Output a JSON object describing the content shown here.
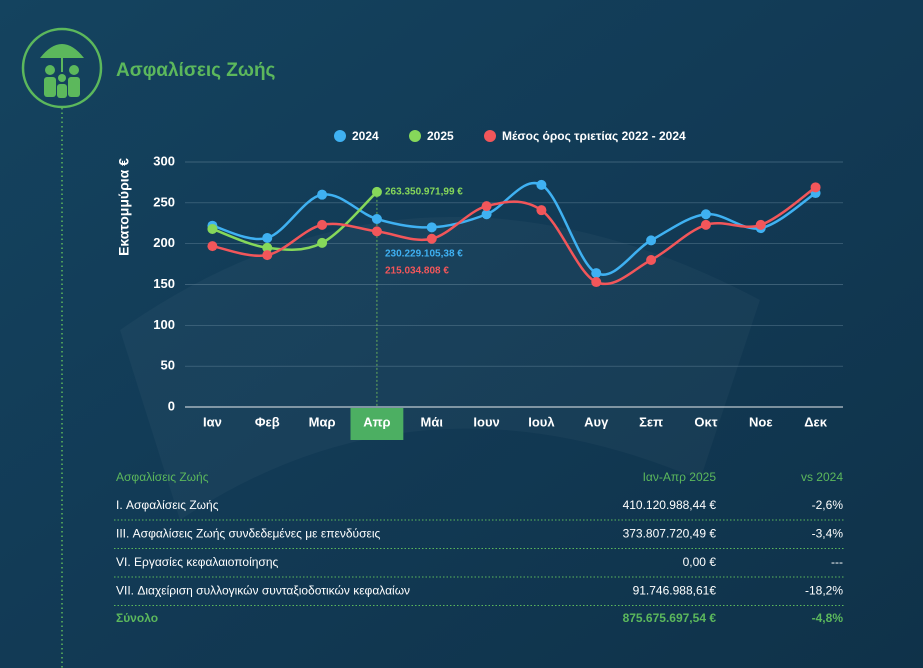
{
  "header": {
    "title": "Ασφαλίσεις Ζωής"
  },
  "chart_data": {
    "type": "line",
    "y_label": "Εκατομμύρια €",
    "categories": [
      "Ιαν",
      "Φεβ",
      "Μαρ",
      "Απρ",
      "Μάι",
      "Ιουν",
      "Ιουλ",
      "Αυγ",
      "Σεπ",
      "Οκτ",
      "Νοε",
      "Δεκ"
    ],
    "highlight_index": 3,
    "series": [
      {
        "name": "2024",
        "color": "#3fb1f2",
        "values": [
          222,
          207,
          260,
          230.229105,
          220,
          236,
          272,
          164,
          204,
          236,
          219,
          262
        ],
        "value_labels": [
          null,
          null,
          null,
          "230.229.105,38 €",
          null,
          null,
          null,
          null,
          null,
          null,
          null,
          null
        ]
      },
      {
        "name": "2025",
        "color": "#86d85a",
        "values": [
          218,
          195,
          201,
          263.350972,
          null,
          null,
          null,
          null,
          null,
          null,
          null,
          null
        ],
        "value_labels": [
          null,
          null,
          null,
          "263.350.971,99 €",
          null,
          null,
          null,
          null,
          null,
          null,
          null,
          null
        ]
      },
      {
        "name": "Μέσος όρος τριετίας 2022 - 2024",
        "color": "#f2565a",
        "values": [
          197,
          186,
          223,
          215.034808,
          206,
          246,
          241,
          153,
          180,
          223,
          223,
          269
        ],
        "value_labels": [
          null,
          null,
          null,
          "215.034.808 €",
          null,
          null,
          null,
          null,
          null,
          null,
          null,
          null
        ]
      }
    ],
    "ylim": [
      0,
      300
    ],
    "yticks": [
      0,
      50,
      100,
      150,
      200,
      250,
      300
    ],
    "grid": true,
    "legend": "top"
  },
  "table": {
    "header": [
      "Ασφαλίσεις Ζωής",
      "Ιαν-Απρ 2025",
      "vs 2024"
    ],
    "rows": [
      [
        "I. Ασφαλίσεις  Ζωής",
        "410.120.988,44 €",
        "-2,6%"
      ],
      [
        "III. Ασφαλίσεις  Ζωής  συνδεδεμένες με επενδύσεις",
        "373.807.720,49 €",
        "-3,4%"
      ],
      [
        "VI. Εργασίες κεφαλαιοποίησης",
        "0,00 €",
        "---"
      ],
      [
        "VII. Διαχείριση συλλογικών συνταξιοδοτικών κεφαλαίων",
        "91.746.988,61€",
        "-18,2%"
      ]
    ],
    "total": [
      "Σύνολο",
      "875.675.697,54 €",
      "-4,8%"
    ]
  }
}
